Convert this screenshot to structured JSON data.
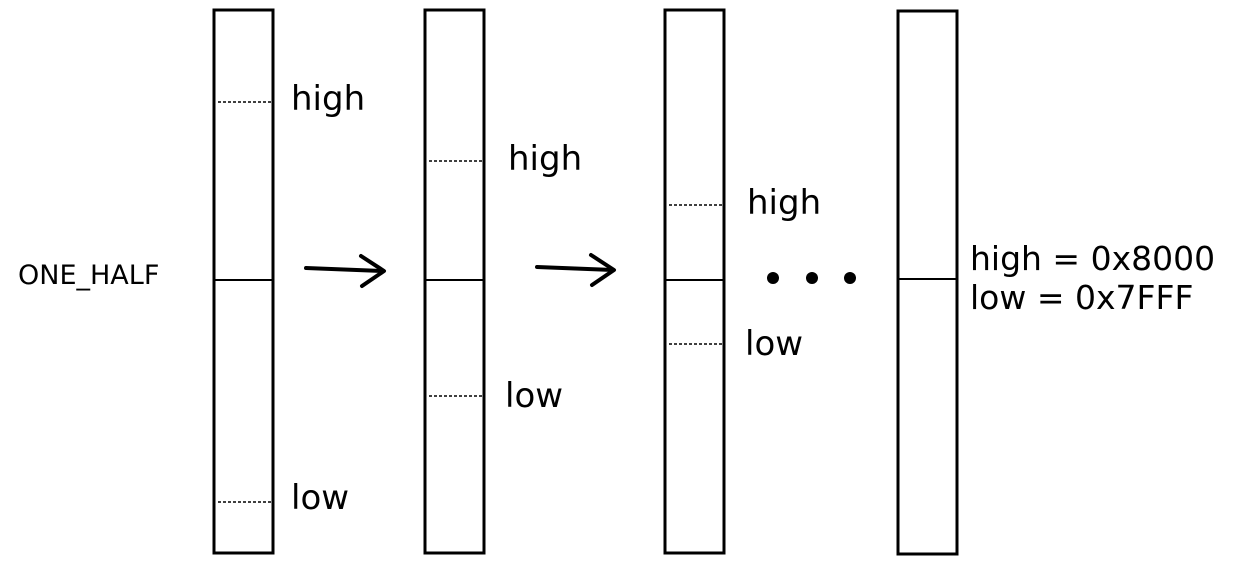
{
  "diagram": {
    "left_label": "ONE_HALF",
    "high_label": "high",
    "low_label": "low",
    "final_high": "high = 0x8000",
    "final_low": "low = 0x7FFF"
  }
}
